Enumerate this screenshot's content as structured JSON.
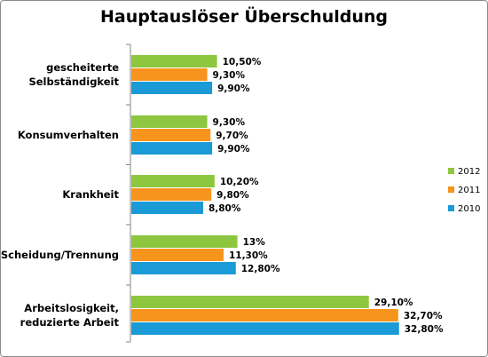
{
  "chart_data": {
    "type": "bar",
    "orientation": "horizontal",
    "title": "Hauptauslöser Überschuldung",
    "categories": [
      [
        "gescheiterte",
        "Selbständigkeit"
      ],
      [
        "Konsumverhalten"
      ],
      [
        "Krankheit"
      ],
      [
        "Scheidung/Trennung"
      ],
      [
        "Arbeitslosigkeit,",
        "reduzierte Arbeit"
      ]
    ],
    "series": [
      {
        "name": "2012",
        "color": "#8dc63f",
        "values": [
          10.5,
          9.3,
          10.2,
          13,
          29.1
        ],
        "labels": [
          "10,50%",
          "9,30%",
          "10,20%",
          "13%",
          "29,10%"
        ]
      },
      {
        "name": "2011",
        "color": "#f7941d",
        "values": [
          9.3,
          9.7,
          9.8,
          11.3,
          32.7
        ],
        "labels": [
          "9,30%",
          "9,70%",
          "9,80%",
          "11,30%",
          "32,70%"
        ]
      },
      {
        "name": "2010",
        "color": "#1a9ad6",
        "values": [
          9.9,
          9.9,
          8.8,
          12.8,
          32.8
        ],
        "labels": [
          "9,90%",
          "9,90%",
          "8,80%",
          "12,80%",
          "32,80%"
        ]
      }
    ],
    "xlim": [
      0,
      40
    ],
    "grid": false,
    "legend": "right"
  }
}
